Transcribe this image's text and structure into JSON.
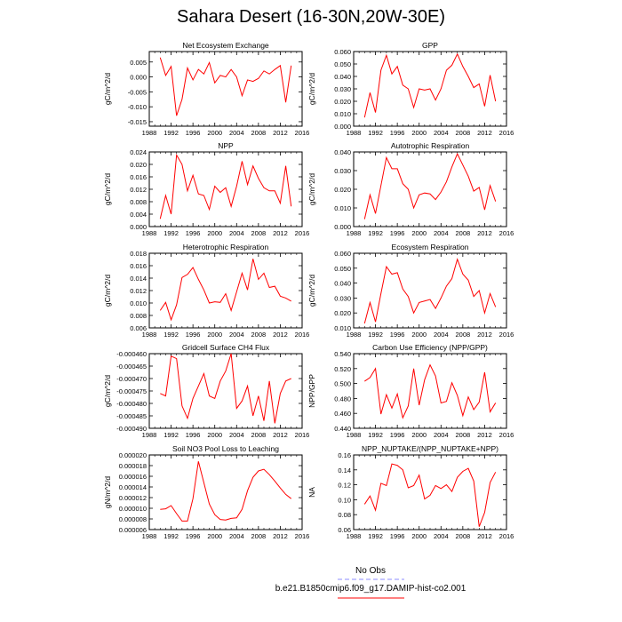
{
  "title": "Sahara Desert (16-30N,20W-30E)",
  "legend": {
    "obs_label": "No Obs",
    "model_label": "b.e21.B1850cmip6.f09_g17.DAMIP-hist-co2.001",
    "obs_color": "#8c8cff",
    "model_color": "#ff0000"
  },
  "chart_data": [
    {
      "type": "line",
      "title": "Net Ecosystem Exchange",
      "ylabel": "gC/m^2/d",
      "xlim": [
        1988,
        2016
      ],
      "xticks": [
        1988,
        1992,
        1996,
        2000,
        2004,
        2008,
        2012,
        2016
      ],
      "ylim": [
        -0.0165,
        0.0085
      ],
      "yticks": [
        -0.015,
        -0.01,
        -0.005,
        0.0,
        0.005
      ],
      "ytick_labels": [
        "-0.015",
        "-0.010",
        "-0.005",
        "0.000",
        "0.005"
      ],
      "series": [
        {
          "color": "#ff0000",
          "x": [
            1990,
            1991,
            1992,
            1993,
            1994,
            1995,
            1996,
            1997,
            1998,
            1999,
            2000,
            2001,
            2002,
            2003,
            2004,
            2005,
            2006,
            2007,
            2008,
            2009,
            2010,
            2011,
            2012,
            2013,
            2014
          ],
          "y": [
            0.0065,
            0.0005,
            0.0035,
            -0.013,
            -0.0075,
            0.003,
            -0.001,
            0.0025,
            0.001,
            0.0048,
            -0.002,
            0.0005,
            0.0,
            0.0025,
            0.0,
            -0.0063,
            -0.001,
            -0.0015,
            -0.0005,
            0.002,
            0.001,
            0.0025,
            0.0038,
            -0.0085,
            0.0038
          ]
        }
      ]
    },
    {
      "type": "line",
      "title": "GPP",
      "ylabel": "gC/m^2/d",
      "xlim": [
        1988,
        2016
      ],
      "xticks": [
        1988,
        1992,
        1996,
        2000,
        2004,
        2008,
        2012,
        2016
      ],
      "ylim": [
        0.0,
        0.06
      ],
      "yticks": [
        0.0,
        0.01,
        0.02,
        0.03,
        0.04,
        0.05,
        0.06
      ],
      "ytick_labels": [
        "0.000",
        "0.010",
        "0.020",
        "0.030",
        "0.040",
        "0.050",
        "0.060"
      ],
      "series": [
        {
          "color": "#ff0000",
          "x": [
            1990,
            1991,
            1992,
            1993,
            1994,
            1995,
            1996,
            1997,
            1998,
            1999,
            2000,
            2001,
            2002,
            2003,
            2004,
            2005,
            2006,
            2007,
            2008,
            2009,
            2010,
            2011,
            2012,
            2013,
            2014
          ],
          "y": [
            0.007,
            0.027,
            0.011,
            0.045,
            0.057,
            0.042,
            0.048,
            0.033,
            0.03,
            0.015,
            0.03,
            0.029,
            0.03,
            0.021,
            0.03,
            0.045,
            0.049,
            0.058,
            0.048,
            0.04,
            0.031,
            0.034,
            0.016,
            0.041,
            0.02
          ]
        }
      ]
    },
    {
      "type": "line",
      "title": "NPP",
      "ylabel": "gC/m^2/d",
      "xlim": [
        1988,
        2016
      ],
      "xticks": [
        1988,
        1992,
        1996,
        2000,
        2004,
        2008,
        2012,
        2016
      ],
      "ylim": [
        0.0,
        0.024
      ],
      "yticks": [
        0.0,
        0.004,
        0.008,
        0.012,
        0.016,
        0.02,
        0.024
      ],
      "ytick_labels": [
        "0.000",
        "0.004",
        "0.008",
        "0.012",
        "0.016",
        "0.020",
        "0.024"
      ],
      "series": [
        {
          "color": "#ff0000",
          "x": [
            1990,
            1991,
            1992,
            1993,
            1994,
            1995,
            1996,
            1997,
            1998,
            1999,
            2000,
            2001,
            2002,
            2003,
            2004,
            2005,
            2006,
            2007,
            2008,
            2009,
            2010,
            2011,
            2012,
            2013,
            2014
          ],
          "y": [
            0.0025,
            0.01,
            0.004,
            0.023,
            0.02,
            0.0115,
            0.0165,
            0.0105,
            0.01,
            0.0055,
            0.013,
            0.011,
            0.0125,
            0.0065,
            0.013,
            0.021,
            0.0135,
            0.0195,
            0.0155,
            0.0125,
            0.0115,
            0.0115,
            0.0075,
            0.0195,
            0.0065
          ]
        }
      ]
    },
    {
      "type": "line",
      "title": "Autotrophic Respiration",
      "ylabel": "gC/m^2/d",
      "xlim": [
        1988,
        2016
      ],
      "xticks": [
        1988,
        1992,
        1996,
        2000,
        2004,
        2008,
        2012,
        2016
      ],
      "ylim": [
        0.0,
        0.04
      ],
      "yticks": [
        0.0,
        0.01,
        0.02,
        0.03,
        0.04
      ],
      "ytick_labels": [
        "0.000",
        "0.010",
        "0.020",
        "0.030",
        "0.040"
      ],
      "series": [
        {
          "color": "#ff0000",
          "x": [
            1990,
            1991,
            1992,
            1993,
            1994,
            1995,
            1996,
            1997,
            1998,
            1999,
            2000,
            2001,
            2002,
            2003,
            2004,
            2005,
            2006,
            2007,
            2008,
            2009,
            2010,
            2011,
            2012,
            2013,
            2014
          ],
          "y": [
            0.004,
            0.017,
            0.007,
            0.022,
            0.037,
            0.031,
            0.031,
            0.023,
            0.02,
            0.01,
            0.017,
            0.018,
            0.0175,
            0.0145,
            0.0185,
            0.024,
            0.032,
            0.039,
            0.033,
            0.027,
            0.019,
            0.021,
            0.009,
            0.022,
            0.0135
          ]
        }
      ]
    },
    {
      "type": "line",
      "title": "Heterotrophic Respiration",
      "ylabel": "gC/m^2/d",
      "xlim": [
        1988,
        2016
      ],
      "xticks": [
        1988,
        1992,
        1996,
        2000,
        2004,
        2008,
        2012,
        2016
      ],
      "ylim": [
        0.006,
        0.018
      ],
      "yticks": [
        0.006,
        0.008,
        0.01,
        0.012,
        0.014,
        0.016,
        0.018
      ],
      "ytick_labels": [
        "0.006",
        "0.008",
        "0.010",
        "0.012",
        "0.014",
        "0.016",
        "0.018"
      ],
      "series": [
        {
          "color": "#ff0000",
          "x": [
            1990,
            1991,
            1992,
            1993,
            1994,
            1995,
            1996,
            1997,
            1998,
            1999,
            2000,
            2001,
            2002,
            2003,
            2004,
            2005,
            2006,
            2007,
            2008,
            2009,
            2010,
            2011,
            2012,
            2013,
            2014
          ],
          "y": [
            0.0088,
            0.0101,
            0.0073,
            0.0097,
            0.0141,
            0.0146,
            0.0157,
            0.0138,
            0.0121,
            0.01,
            0.0102,
            0.0101,
            0.0115,
            0.0088,
            0.0118,
            0.0148,
            0.0121,
            0.0171,
            0.0138,
            0.0148,
            0.0125,
            0.0127,
            0.0111,
            0.0108,
            0.0103
          ]
        }
      ]
    },
    {
      "type": "line",
      "title": "Ecosystem Respiration",
      "ylabel": "gC/m^2/d",
      "xlim": [
        1988,
        2016
      ],
      "xticks": [
        1988,
        1992,
        1996,
        2000,
        2004,
        2008,
        2012,
        2016
      ],
      "ylim": [
        0.01,
        0.06
      ],
      "yticks": [
        0.01,
        0.02,
        0.03,
        0.04,
        0.05,
        0.06
      ],
      "ytick_labels": [
        "0.010",
        "0.020",
        "0.030",
        "0.040",
        "0.050",
        "0.060"
      ],
      "series": [
        {
          "color": "#ff0000",
          "x": [
            1990,
            1991,
            1992,
            1993,
            1994,
            1995,
            1996,
            1997,
            1998,
            1999,
            2000,
            2001,
            2002,
            2003,
            2004,
            2005,
            2006,
            2007,
            2008,
            2009,
            2010,
            2011,
            2012,
            2013,
            2014
          ],
          "y": [
            0.013,
            0.027,
            0.014,
            0.033,
            0.051,
            0.046,
            0.047,
            0.036,
            0.031,
            0.02,
            0.027,
            0.028,
            0.029,
            0.023,
            0.03,
            0.038,
            0.043,
            0.056,
            0.046,
            0.042,
            0.031,
            0.035,
            0.02,
            0.033,
            0.024
          ]
        }
      ]
    },
    {
      "type": "line",
      "title": "Gridcell Surface CH4 Flux",
      "ylabel": "gC/m^2/d",
      "xlim": [
        1988,
        2016
      ],
      "xticks": [
        1988,
        1992,
        1996,
        2000,
        2004,
        2008,
        2012,
        2016
      ],
      "ylim": [
        -0.00049,
        -0.00046
      ],
      "yticks": [
        -0.00049,
        -0.000485,
        -0.00048,
        -0.000475,
        -0.00047,
        -0.000465,
        -0.00046
      ],
      "ytick_labels": [
        "-0.000490",
        "-0.000485",
        "-0.000480",
        "-0.000475",
        "-0.000470",
        "-0.000465",
        "-0.000460"
      ],
      "series": [
        {
          "color": "#ff0000",
          "x": [
            1990,
            1991,
            1992,
            1993,
            1994,
            1995,
            1996,
            1997,
            1998,
            1999,
            2000,
            2001,
            2002,
            2003,
            2004,
            2005,
            2006,
            2007,
            2008,
            2009,
            2010,
            2011,
            2012,
            2013,
            2014
          ],
          "y": [
            -0.000476,
            -0.000477,
            -0.000461,
            -0.000462,
            -0.000481,
            -0.000486,
            -0.000478,
            -0.000473,
            -0.000468,
            -0.000477,
            -0.000478,
            -0.000471,
            -0.000467,
            -0.00046,
            -0.000482,
            -0.000479,
            -0.000473,
            -0.000485,
            -0.000477,
            -0.000487,
            -0.000471,
            -0.000488,
            -0.000476,
            -0.000471,
            -0.00047
          ]
        }
      ]
    },
    {
      "type": "line",
      "title": "Carbon Use Efficiency (NPP/GPP)",
      "ylabel": "NPP/GPP",
      "xlim": [
        1988,
        2016
      ],
      "xticks": [
        1988,
        1992,
        1996,
        2000,
        2004,
        2008,
        2012,
        2016
      ],
      "ylim": [
        0.44,
        0.54
      ],
      "yticks": [
        0.44,
        0.46,
        0.48,
        0.5,
        0.52,
        0.54
      ],
      "ytick_labels": [
        "0.440",
        "0.460",
        "0.480",
        "0.500",
        "0.520",
        "0.540"
      ],
      "series": [
        {
          "color": "#ff0000",
          "x": [
            1990,
            1991,
            1992,
            1993,
            1994,
            1995,
            1996,
            1997,
            1998,
            1999,
            2000,
            2001,
            2002,
            2003,
            2004,
            2005,
            2006,
            2007,
            2008,
            2009,
            2010,
            2011,
            2012,
            2013,
            2014
          ],
          "y": [
            0.503,
            0.508,
            0.52,
            0.459,
            0.485,
            0.467,
            0.486,
            0.454,
            0.47,
            0.52,
            0.471,
            0.505,
            0.525,
            0.51,
            0.474,
            0.476,
            0.501,
            0.484,
            0.457,
            0.482,
            0.465,
            0.475,
            0.515,
            0.462,
            0.474
          ]
        }
      ]
    },
    {
      "type": "line",
      "title": "Soil NO3 Pool Loss to Leaching",
      "ylabel": "gN/m^2/d",
      "xlim": [
        1988,
        2016
      ],
      "xticks": [
        1988,
        1992,
        1996,
        2000,
        2004,
        2008,
        2012,
        2016
      ],
      "ylim": [
        6e-06,
        2e-05
      ],
      "yticks": [
        6e-06,
        8e-06,
        1e-05,
        1.2e-05,
        1.4e-05,
        1.6e-05,
        1.8e-05,
        2e-05
      ],
      "ytick_labels": [
        "0.000006",
        "0.000008",
        "0.000010",
        "0.000012",
        "0.000014",
        "0.000016",
        "0.000018",
        "0.000020"
      ],
      "series": [
        {
          "color": "#ff0000",
          "x": [
            1990,
            1991,
            1992,
            1993,
            1994,
            1995,
            1996,
            1997,
            1998,
            1999,
            2000,
            2001,
            2002,
            2003,
            2004,
            2005,
            2006,
            2007,
            2008,
            2009,
            2010,
            2011,
            2012,
            2013,
            2014
          ],
          "y": [
            9.8e-06,
            9.9e-06,
            1.05e-05,
            9e-06,
            7.6e-06,
            7.6e-06,
            1.18e-05,
            1.88e-05,
            1.48e-05,
            1.08e-05,
            8.8e-06,
            7.9e-06,
            7.8e-06,
            8.1e-06,
            8.2e-06,
            9.8e-06,
            1.33e-05,
            1.58e-05,
            1.7e-05,
            1.73e-05,
            1.63e-05,
            1.51e-05,
            1.38e-05,
            1.26e-05,
            1.18e-05
          ]
        }
      ]
    },
    {
      "type": "line",
      "title": "NPP_NUPTAKE/(NPP_NUPTAKE+NPP)",
      "ylabel": "NA",
      "xlim": [
        1988,
        2016
      ],
      "xticks": [
        1988,
        1992,
        1996,
        2000,
        2004,
        2008,
        2012,
        2016
      ],
      "ylim": [
        0.06,
        0.16
      ],
      "yticks": [
        0.06,
        0.08,
        0.1,
        0.12,
        0.14,
        0.16
      ],
      "ytick_labels": [
        "0.06",
        "0.08",
        "0.10",
        "0.12",
        "0.14",
        "0.16"
      ],
      "series": [
        {
          "color": "#ff0000",
          "x": [
            1990,
            1991,
            1992,
            1993,
            1994,
            1995,
            1996,
            1997,
            1998,
            1999,
            2000,
            2001,
            2002,
            2003,
            2004,
            2005,
            2006,
            2007,
            2008,
            2009,
            2010,
            2011,
            2012,
            2013,
            2014
          ],
          "y": [
            0.094,
            0.105,
            0.086,
            0.122,
            0.119,
            0.148,
            0.146,
            0.14,
            0.116,
            0.119,
            0.133,
            0.101,
            0.106,
            0.119,
            0.115,
            0.12,
            0.111,
            0.13,
            0.138,
            0.142,
            0.125,
            0.064,
            0.083,
            0.123,
            0.137
          ]
        }
      ]
    }
  ]
}
